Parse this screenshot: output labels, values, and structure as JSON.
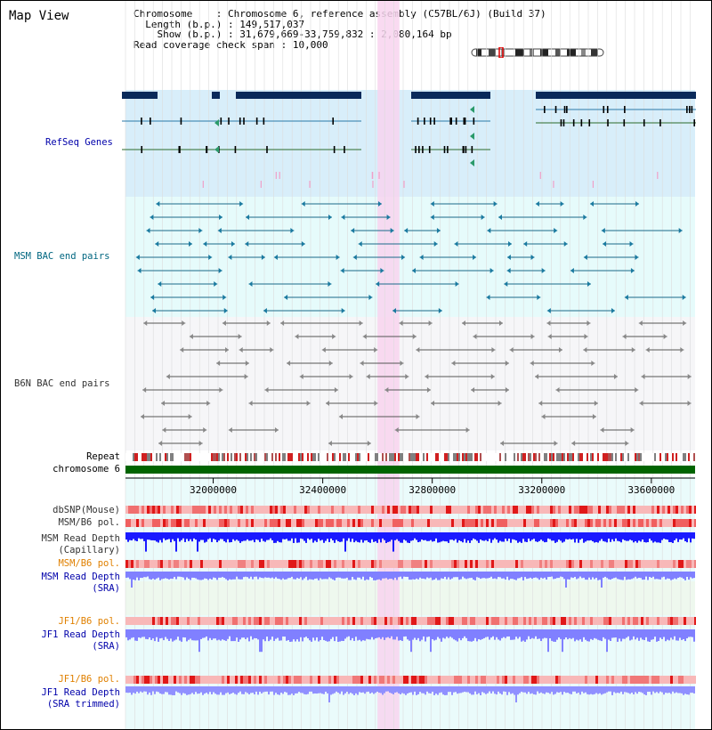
{
  "app_title": "Map View",
  "info": {
    "chromosome_label": "Chromosome",
    "chromosome_value": "Chromosome 6, reference assembly (C57BL/6J) (Build 37)",
    "length_label": "Length (b.p.)",
    "length_value": "149,517,037",
    "show_label": "Show (b.p.)",
    "show_value": "31,679,669-33,759,832 : 2,080,164 bp",
    "coverage_label": "Read coverage check span",
    "coverage_value": "10,000"
  },
  "tracks": {
    "refseq": "RefSeq Genes",
    "msm_bac": "MSM BAC end pairs",
    "b6n_bac": "B6N BAC end pairs",
    "repeat": "Repeat",
    "chromosome": "chromosome 6",
    "dbsnp": "dbSNP(Mouse)",
    "msm_b6_pol_1": "MSM/B6 pol.",
    "msm_read_depth_cap_1": "MSM Read Depth",
    "msm_read_depth_cap_2": "(Capillary)",
    "msm_b6_pol_2": "MSM/B6 pol.",
    "msm_read_depth_sra_1": "MSM Read Depth",
    "msm_read_depth_sra_2": "(SRA)",
    "jf1_b6_pol_1": "JF1/B6 pol.",
    "jf1_read_depth_sra_1": "JF1 Read Depth",
    "jf1_read_depth_sra_2": "(SRA)",
    "jf1_b6_pol_2": "JF1/B6 pol.",
    "jf1_read_depth_trim_1": "JF1 Read Depth",
    "jf1_read_depth_trim_2": "(SRA trimmed)"
  },
  "axis": {
    "start": 31679669,
    "end": 33759832,
    "ticks": [
      32000000,
      32400000,
      32800000,
      33200000,
      33600000
    ],
    "tick_labels": [
      "32000000",
      "32400000",
      "32800000",
      "33200000",
      "33600000"
    ]
  },
  "highlight_region": [
    32600000,
    32680000
  ],
  "colors": {
    "label_blue": "#0000aa",
    "label_teal": "#006680",
    "label_gray": "#333333",
    "label_orange": "#e08000",
    "refseq_bg": "#d8eefa",
    "msm_bg": "#e6fbfb",
    "b6n_bg": "#f6f6f8",
    "highlight": "#f8d4ef",
    "gene_dark": "#0a2a5a",
    "depth_blue": "#1a1aff",
    "depth_light": "#8080ff",
    "chromosome_green": "#006400"
  }
}
